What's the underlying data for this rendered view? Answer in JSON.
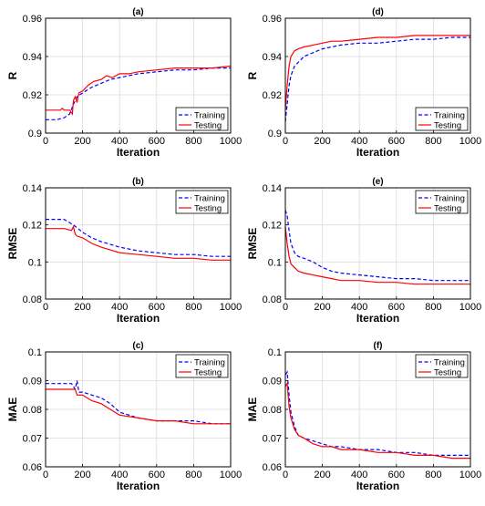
{
  "chart_data": [
    {
      "type": "line",
      "title": "(a)",
      "xlabel": "Iteration",
      "ylabel": "R",
      "xlim": [
        0,
        1000
      ],
      "ylim": [
        0.9,
        0.96
      ],
      "xticks": [
        "0",
        "200",
        "400",
        "600",
        "800",
        "1000"
      ],
      "yticks": [
        "0.9",
        "0.92",
        "0.94",
        "0.96"
      ],
      "grid": true,
      "legend_position": "bottom-right",
      "series": [
        {
          "name": "Training",
          "style": "dashed",
          "color": "#0000ff",
          "x": [
            0,
            60,
            100,
            130,
            150,
            170,
            200,
            250,
            300,
            350,
            400,
            500,
            600,
            700,
            800,
            900,
            1000
          ],
          "y": [
            0.907,
            0.907,
            0.908,
            0.91,
            0.915,
            0.919,
            0.921,
            0.924,
            0.926,
            0.928,
            0.929,
            0.931,
            0.932,
            0.933,
            0.933,
            0.934,
            0.934
          ]
        },
        {
          "name": "Testing",
          "style": "solid",
          "color": "#ff0000",
          "x": [
            0,
            80,
            90,
            100,
            130,
            145,
            150,
            160,
            170,
            180,
            200,
            230,
            260,
            300,
            330,
            360,
            400,
            450,
            500,
            600,
            700,
            800,
            900,
            1000
          ],
          "y": [
            0.912,
            0.912,
            0.913,
            0.912,
            0.912,
            0.91,
            0.917,
            0.919,
            0.916,
            0.921,
            0.922,
            0.925,
            0.927,
            0.928,
            0.93,
            0.929,
            0.931,
            0.931,
            0.932,
            0.933,
            0.934,
            0.934,
            0.934,
            0.935
          ]
        }
      ]
    },
    {
      "type": "line",
      "title": "(b)",
      "xlabel": "Iteration",
      "ylabel": "RMSE",
      "xlim": [
        0,
        1000
      ],
      "ylim": [
        0.08,
        0.14
      ],
      "xticks": [
        "0",
        "200",
        "400",
        "600",
        "800",
        "1000"
      ],
      "yticks": [
        "0.08",
        "0.1",
        "0.12",
        "0.14"
      ],
      "grid": true,
      "legend_position": "top-right",
      "series": [
        {
          "name": "Training",
          "style": "dashed",
          "color": "#0000ff",
          "x": [
            0,
            100,
            150,
            200,
            250,
            300,
            400,
            500,
            600,
            700,
            800,
            900,
            1000
          ],
          "y": [
            0.123,
            0.123,
            0.12,
            0.116,
            0.113,
            0.111,
            0.108,
            0.106,
            0.105,
            0.104,
            0.104,
            0.103,
            0.103
          ]
        },
        {
          "name": "Testing",
          "style": "solid",
          "color": "#ff0000",
          "x": [
            0,
            100,
            140,
            150,
            160,
            170,
            200,
            250,
            300,
            400,
            500,
            600,
            700,
            800,
            900,
            1000
          ],
          "y": [
            0.118,
            0.118,
            0.117,
            0.119,
            0.115,
            0.114,
            0.113,
            0.11,
            0.108,
            0.105,
            0.104,
            0.103,
            0.102,
            0.102,
            0.101,
            0.101
          ]
        }
      ]
    },
    {
      "type": "line",
      "title": "(c)",
      "xlabel": "Iteration",
      "ylabel": "MAE",
      "xlim": [
        0,
        1000
      ],
      "ylim": [
        0.06,
        0.1
      ],
      "xticks": [
        "0",
        "200",
        "400",
        "600",
        "800",
        "1000"
      ],
      "yticks": [
        "0.06",
        "0.07",
        "0.08",
        "0.09",
        "0.1"
      ],
      "grid": true,
      "legend_position": "top-right",
      "series": [
        {
          "name": "Training",
          "style": "dashed",
          "color": "#0000ff",
          "x": [
            0,
            140,
            160,
            170,
            180,
            200,
            250,
            300,
            350,
            400,
            500,
            600,
            700,
            800,
            900,
            1000
          ],
          "y": [
            0.089,
            0.089,
            0.087,
            0.09,
            0.086,
            0.086,
            0.085,
            0.084,
            0.082,
            0.079,
            0.077,
            0.076,
            0.076,
            0.076,
            0.075,
            0.075
          ]
        },
        {
          "name": "Testing",
          "style": "solid",
          "color": "#ff0000",
          "x": [
            0,
            140,
            160,
            170,
            180,
            200,
            250,
            300,
            350,
            400,
            500,
            600,
            700,
            800,
            900,
            1000
          ],
          "y": [
            0.087,
            0.087,
            0.087,
            0.085,
            0.085,
            0.085,
            0.083,
            0.082,
            0.08,
            0.078,
            0.077,
            0.076,
            0.076,
            0.075,
            0.075,
            0.075
          ]
        }
      ]
    },
    {
      "type": "line",
      "title": "(d)",
      "xlabel": "Iteration",
      "ylabel": "R",
      "xlim": [
        0,
        1000
      ],
      "ylim": [
        0.9,
        0.96
      ],
      "xticks": [
        "0",
        "200",
        "400",
        "600",
        "800",
        "1000"
      ],
      "yticks": [
        "0.9",
        "0.92",
        "0.94",
        "0.96"
      ],
      "grid": true,
      "legend_position": "bottom-right",
      "series": [
        {
          "name": "Training",
          "style": "dashed",
          "color": "#0000ff",
          "x": [
            0,
            10,
            20,
            30,
            50,
            70,
            100,
            150,
            200,
            250,
            300,
            400,
            500,
            600,
            700,
            800,
            900,
            1000
          ],
          "y": [
            0.906,
            0.915,
            0.925,
            0.93,
            0.935,
            0.937,
            0.94,
            0.942,
            0.944,
            0.945,
            0.946,
            0.947,
            0.947,
            0.948,
            0.949,
            0.949,
            0.95,
            0.95
          ]
        },
        {
          "name": "Testing",
          "style": "solid",
          "color": "#ff0000",
          "x": [
            0,
            10,
            20,
            30,
            50,
            70,
            100,
            150,
            200,
            250,
            300,
            400,
            500,
            600,
            700,
            800,
            900,
            1000
          ],
          "y": [
            0.912,
            0.925,
            0.935,
            0.94,
            0.943,
            0.944,
            0.945,
            0.946,
            0.947,
            0.948,
            0.948,
            0.949,
            0.95,
            0.95,
            0.951,
            0.951,
            0.951,
            0.951
          ]
        }
      ]
    },
    {
      "type": "line",
      "title": "(e)",
      "xlabel": "Iteration",
      "ylabel": "RMSE",
      "xlim": [
        0,
        1000
      ],
      "ylim": [
        0.08,
        0.14
      ],
      "xticks": [
        "0",
        "200",
        "400",
        "600",
        "800",
        "1000"
      ],
      "yticks": [
        "0.08",
        "0.1",
        "0.12",
        "0.14"
      ],
      "grid": true,
      "legend_position": "top-right",
      "series": [
        {
          "name": "Training",
          "style": "dashed",
          "color": "#0000ff",
          "x": [
            0,
            10,
            20,
            30,
            50,
            70,
            100,
            150,
            200,
            250,
            300,
            400,
            500,
            600,
            700,
            800,
            900,
            1000
          ],
          "y": [
            0.128,
            0.125,
            0.117,
            0.11,
            0.105,
            0.103,
            0.102,
            0.1,
            0.097,
            0.095,
            0.094,
            0.093,
            0.092,
            0.091,
            0.091,
            0.09,
            0.09,
            0.09
          ]
        },
        {
          "name": "Testing",
          "style": "solid",
          "color": "#ff0000",
          "x": [
            0,
            10,
            20,
            30,
            50,
            70,
            100,
            150,
            200,
            250,
            300,
            400,
            500,
            600,
            700,
            800,
            900,
            1000
          ],
          "y": [
            0.119,
            0.11,
            0.103,
            0.099,
            0.097,
            0.095,
            0.094,
            0.093,
            0.092,
            0.091,
            0.09,
            0.09,
            0.089,
            0.089,
            0.088,
            0.088,
            0.088,
            0.088
          ]
        }
      ]
    },
    {
      "type": "line",
      "title": "(f)",
      "xlabel": "Iteration",
      "ylabel": "MAE",
      "xlim": [
        0,
        1000
      ],
      "ylim": [
        0.06,
        0.1
      ],
      "xticks": [
        "0",
        "200",
        "400",
        "600",
        "800",
        "1000"
      ],
      "yticks": [
        "0.06",
        "0.07",
        "0.08",
        "0.09",
        "0.1"
      ],
      "grid": true,
      "legend_position": "top-right",
      "series": [
        {
          "name": "Training",
          "style": "dashed",
          "color": "#0000ff",
          "x": [
            0,
            10,
            20,
            30,
            50,
            70,
            100,
            150,
            200,
            250,
            300,
            400,
            500,
            600,
            700,
            800,
            900,
            1000
          ],
          "y": [
            0.092,
            0.093,
            0.085,
            0.079,
            0.074,
            0.071,
            0.07,
            0.069,
            0.068,
            0.067,
            0.067,
            0.066,
            0.066,
            0.065,
            0.065,
            0.064,
            0.064,
            0.064
          ]
        },
        {
          "name": "Testing",
          "style": "solid",
          "color": "#ff0000",
          "x": [
            0,
            10,
            20,
            30,
            50,
            70,
            100,
            150,
            200,
            250,
            300,
            400,
            500,
            600,
            700,
            800,
            900,
            1000
          ],
          "y": [
            0.088,
            0.089,
            0.081,
            0.077,
            0.073,
            0.071,
            0.07,
            0.068,
            0.067,
            0.067,
            0.066,
            0.066,
            0.065,
            0.065,
            0.064,
            0.064,
            0.063,
            0.063
          ]
        }
      ]
    }
  ]
}
